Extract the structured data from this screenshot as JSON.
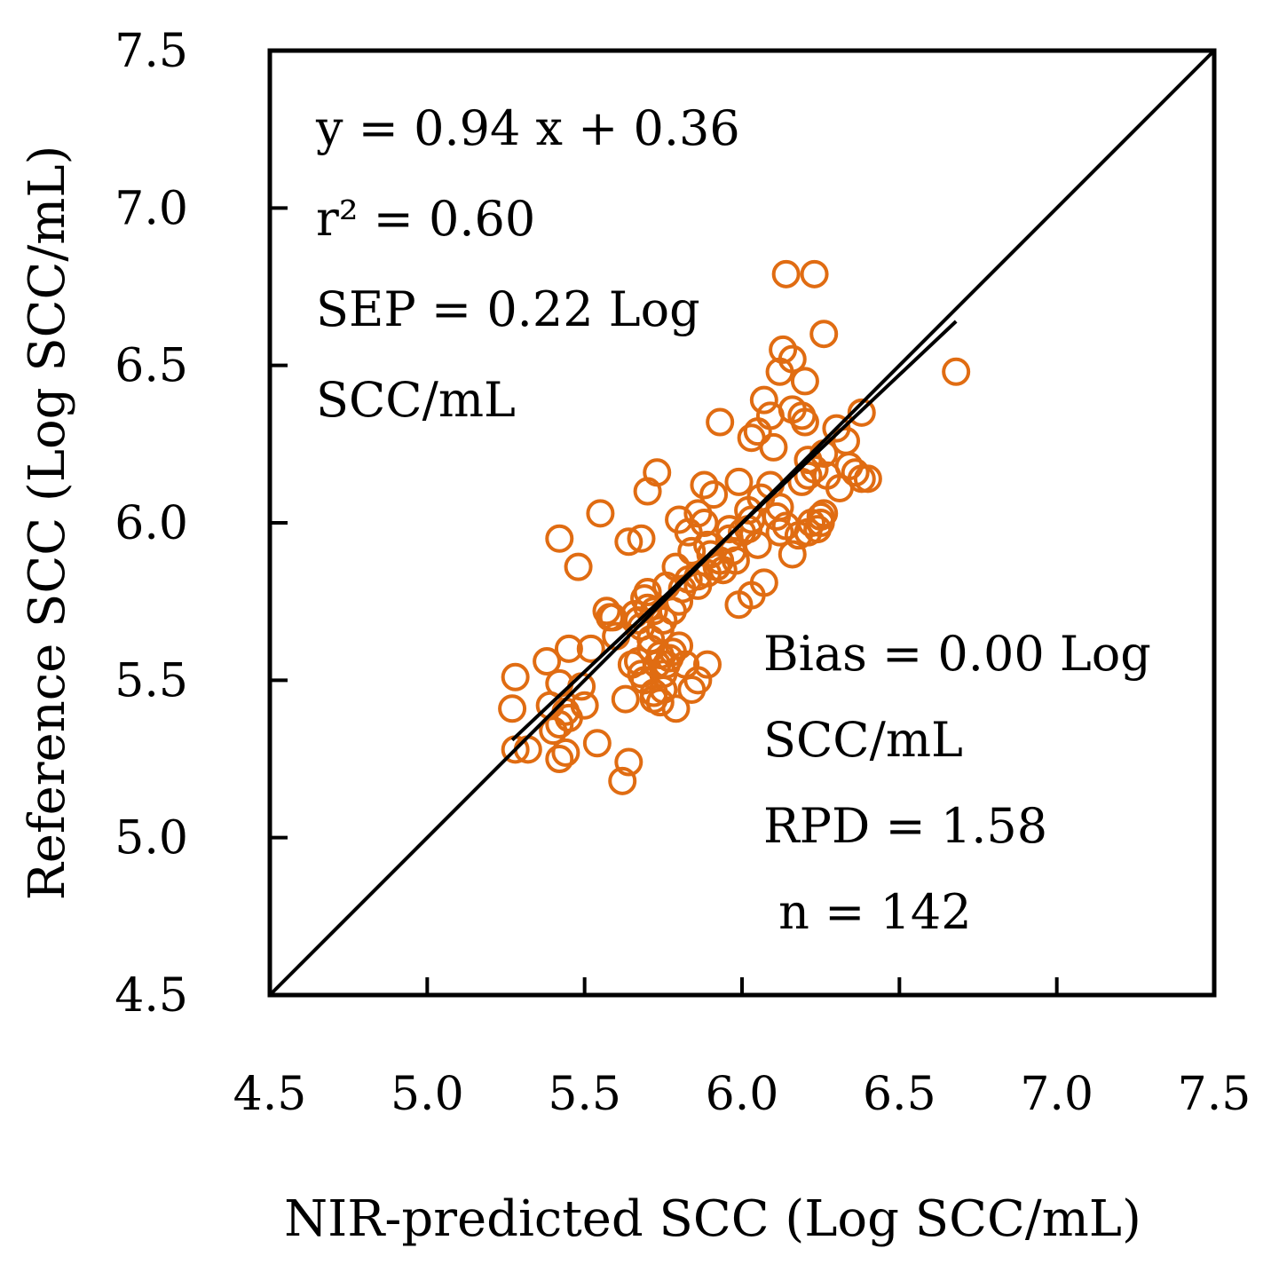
{
  "chart_data": {
    "type": "scatter",
    "title": "",
    "xlabel": "NIR-predicted SCC (Log SCC/mL)",
    "ylabel": "Reference SCC (Log SCC/mL)",
    "xlim": [
      4.5,
      7.5
    ],
    "ylim": [
      4.5,
      7.5
    ],
    "xticks": [
      "4.5",
      "5.0",
      "5.5",
      "6.0",
      "6.5",
      "7.0",
      "7.5"
    ],
    "yticks": [
      "4.5",
      "5.0",
      "5.5",
      "6.0",
      "6.5",
      "7.0",
      "7.5"
    ],
    "grid": false,
    "legend": "none",
    "marker": "open-circle",
    "marker_color": "#E06C12",
    "line_color": "#000000",
    "reference_line": {
      "x": [
        4.5,
        7.5
      ],
      "y": [
        4.5,
        7.5
      ]
    },
    "regression_line": {
      "x": [
        5.27,
        6.68
      ],
      "y": [
        5.31,
        6.64
      ]
    },
    "annotations_left": [
      "y = 0.94 x + 0.36",
      "r² = 0.60",
      "SEP = 0.22 Log",
      "SCC/mL"
    ],
    "annotations_right": [
      "Bias = 0.00 Log",
      "SCC/mL",
      "RPD = 1.58",
      " n = 142"
    ],
    "points": {
      "x": [
        6.14,
        6.23,
        6.26,
        6.68,
        6.13,
        6.16,
        6.12,
        6.2,
        6.19,
        6.07,
        6.16,
        5.93,
        6.09,
        6.05,
        6.03,
        6.2,
        6.3,
        6.38,
        6.33,
        6.1,
        6.26,
        6.21,
        6.23,
        6.27,
        6.19,
        6.21,
        6.31,
        6.38,
        6.36,
        6.34,
        6.4,
        6.25,
        6.22,
        6.24,
        6.26,
        6.18,
        6.14,
        6.11,
        6.12,
        6.09,
        6.06,
        6.03,
        5.99,
        6.02,
        6.0,
        5.96,
        5.97,
        5.93,
        5.89,
        5.91,
        5.88,
        5.86,
        5.88,
        5.83,
        5.8,
        5.84,
        5.79,
        5.86,
        5.94,
        5.98,
        6.07,
        6.03,
        5.99,
        5.89,
        5.92,
        5.81,
        5.83,
        5.8,
        5.78,
        5.75,
        5.72,
        5.7,
        5.76,
        5.74,
        5.71,
        5.68,
        5.69,
        5.66,
        5.7,
        5.73,
        5.68,
        5.64,
        5.59,
        5.57,
        5.6,
        5.65,
        5.68,
        5.55,
        5.48,
        5.42,
        5.45,
        5.42,
        5.49,
        5.5,
        5.45,
        5.39,
        5.38,
        5.42,
        5.44,
        5.4,
        5.28,
        5.27,
        5.28,
        5.32,
        5.42,
        5.44,
        5.54,
        5.63,
        5.64,
        5.62,
        5.69,
        5.72,
        5.67,
        5.72,
        5.75,
        5.76,
        5.74,
        5.79,
        5.77,
        5.82,
        5.86,
        5.84,
        5.89,
        5.74,
        5.71,
        5.73,
        5.75,
        5.78,
        5.8,
        5.67,
        5.58,
        5.52,
        5.7,
        5.86,
        5.9,
        5.96,
        6.02,
        6.05,
        6.12,
        6.16,
        6.21,
        6.25
      ],
      "y": [
        6.79,
        6.79,
        6.6,
        6.48,
        6.55,
        6.52,
        6.48,
        6.45,
        6.34,
        6.39,
        6.36,
        6.32,
        6.34,
        6.29,
        6.27,
        6.32,
        6.3,
        6.35,
        6.26,
        6.24,
        6.22,
        6.2,
        6.17,
        6.15,
        6.13,
        6.15,
        6.11,
        6.14,
        6.16,
        6.18,
        6.14,
        6.02,
        6.0,
        5.98,
        6.03,
        5.96,
        5.99,
        6.02,
        6.05,
        6.12,
        6.08,
        6.01,
        6.13,
        6.04,
        5.97,
        5.95,
        5.91,
        5.88,
        5.93,
        6.09,
        6.12,
        6.03,
        6.0,
        5.97,
        6.01,
        5.91,
        5.86,
        5.83,
        5.85,
        5.88,
        5.81,
        5.77,
        5.74,
        5.84,
        5.86,
        5.79,
        5.82,
        5.75,
        5.72,
        5.69,
        5.72,
        5.78,
        5.8,
        5.66,
        5.63,
        5.67,
        5.76,
        5.71,
        6.1,
        6.16,
        5.95,
        5.94,
        5.7,
        5.72,
        5.64,
        5.55,
        5.52,
        6.03,
        5.86,
        5.95,
        5.6,
        5.49,
        5.48,
        5.42,
        5.38,
        5.42,
        5.56,
        5.36,
        5.4,
        5.34,
        5.51,
        5.41,
        5.28,
        5.28,
        5.25,
        5.27,
        5.3,
        5.44,
        5.24,
        5.18,
        5.5,
        5.44,
        5.56,
        5.46,
        5.52,
        5.55,
        5.43,
        5.41,
        5.57,
        5.55,
        5.5,
        5.47,
        5.55,
        5.58,
        5.6,
        5.55,
        5.47,
        5.59,
        5.61,
        5.69,
        5.7,
        5.6,
        5.73,
        5.8,
        5.9,
        5.98,
        5.98,
        5.93,
        5.97,
        5.9,
        5.97,
        6.0
      ]
    }
  }
}
